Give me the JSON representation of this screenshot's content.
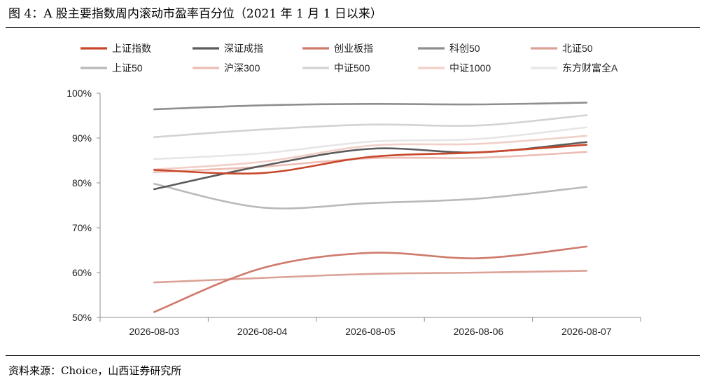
{
  "title": "图 4：A 股主要指数周内滚动市盈率百分位（2021 年 1 月 1 日以来）",
  "source": "资料来源：Choice，山西证券研究所",
  "chart_data": {
    "type": "line",
    "categories": [
      "2026-08-03",
      "2026-08-04",
      "2026-08-05",
      "2026-08-06",
      "2026-08-07"
    ],
    "ylim": [
      50,
      100
    ],
    "yticks": [
      50,
      60,
      70,
      80,
      90,
      100
    ],
    "ytick_labels": [
      "50%",
      "60%",
      "70%",
      "80%",
      "90%",
      "100%"
    ],
    "grid": false,
    "legend_position": "top",
    "series": [
      {
        "name": "上证指数",
        "color": "#c8472a",
        "width": 2.6,
        "values": [
          82.9,
          82.2,
          85.8,
          86.8,
          88.5
        ]
      },
      {
        "name": "深证成指",
        "color": "#5b5b5b",
        "width": 2.6,
        "values": [
          78.6,
          83.8,
          87.6,
          86.8,
          89.1
        ]
      },
      {
        "name": "创业板指",
        "color": "#cf7a6c",
        "width": 2.6,
        "values": [
          51.2,
          61.0,
          64.4,
          63.2,
          65.8
        ]
      },
      {
        "name": "科创50",
        "color": "#8e8e8e",
        "width": 2.6,
        "values": [
          96.4,
          97.3,
          97.6,
          97.5,
          97.9
        ]
      },
      {
        "name": "北证50",
        "color": "#dba196",
        "width": 2.6,
        "values": [
          57.8,
          58.8,
          59.7,
          60.0,
          60.4
        ]
      },
      {
        "name": "上证50",
        "color": "#b9b9b9",
        "width": 2.6,
        "values": [
          79.8,
          74.5,
          75.5,
          76.5,
          79.1
        ]
      },
      {
        "name": "沪深300",
        "color": "#ecbdb5",
        "width": 2.6,
        "values": [
          82.4,
          83.6,
          85.5,
          85.6,
          86.9
        ]
      },
      {
        "name": "中证500",
        "color": "#d2d2d2",
        "width": 2.6,
        "values": [
          90.2,
          91.9,
          93.0,
          92.8,
          95.1
        ]
      },
      {
        "name": "中证1000",
        "color": "#f1cfc8",
        "width": 2.6,
        "values": [
          83.0,
          84.7,
          88.3,
          88.7,
          90.5
        ]
      },
      {
        "name": "东方财富全A",
        "color": "#e6e6e6",
        "width": 2.6,
        "values": [
          85.3,
          86.6,
          89.2,
          89.8,
          92.4
        ]
      }
    ]
  }
}
